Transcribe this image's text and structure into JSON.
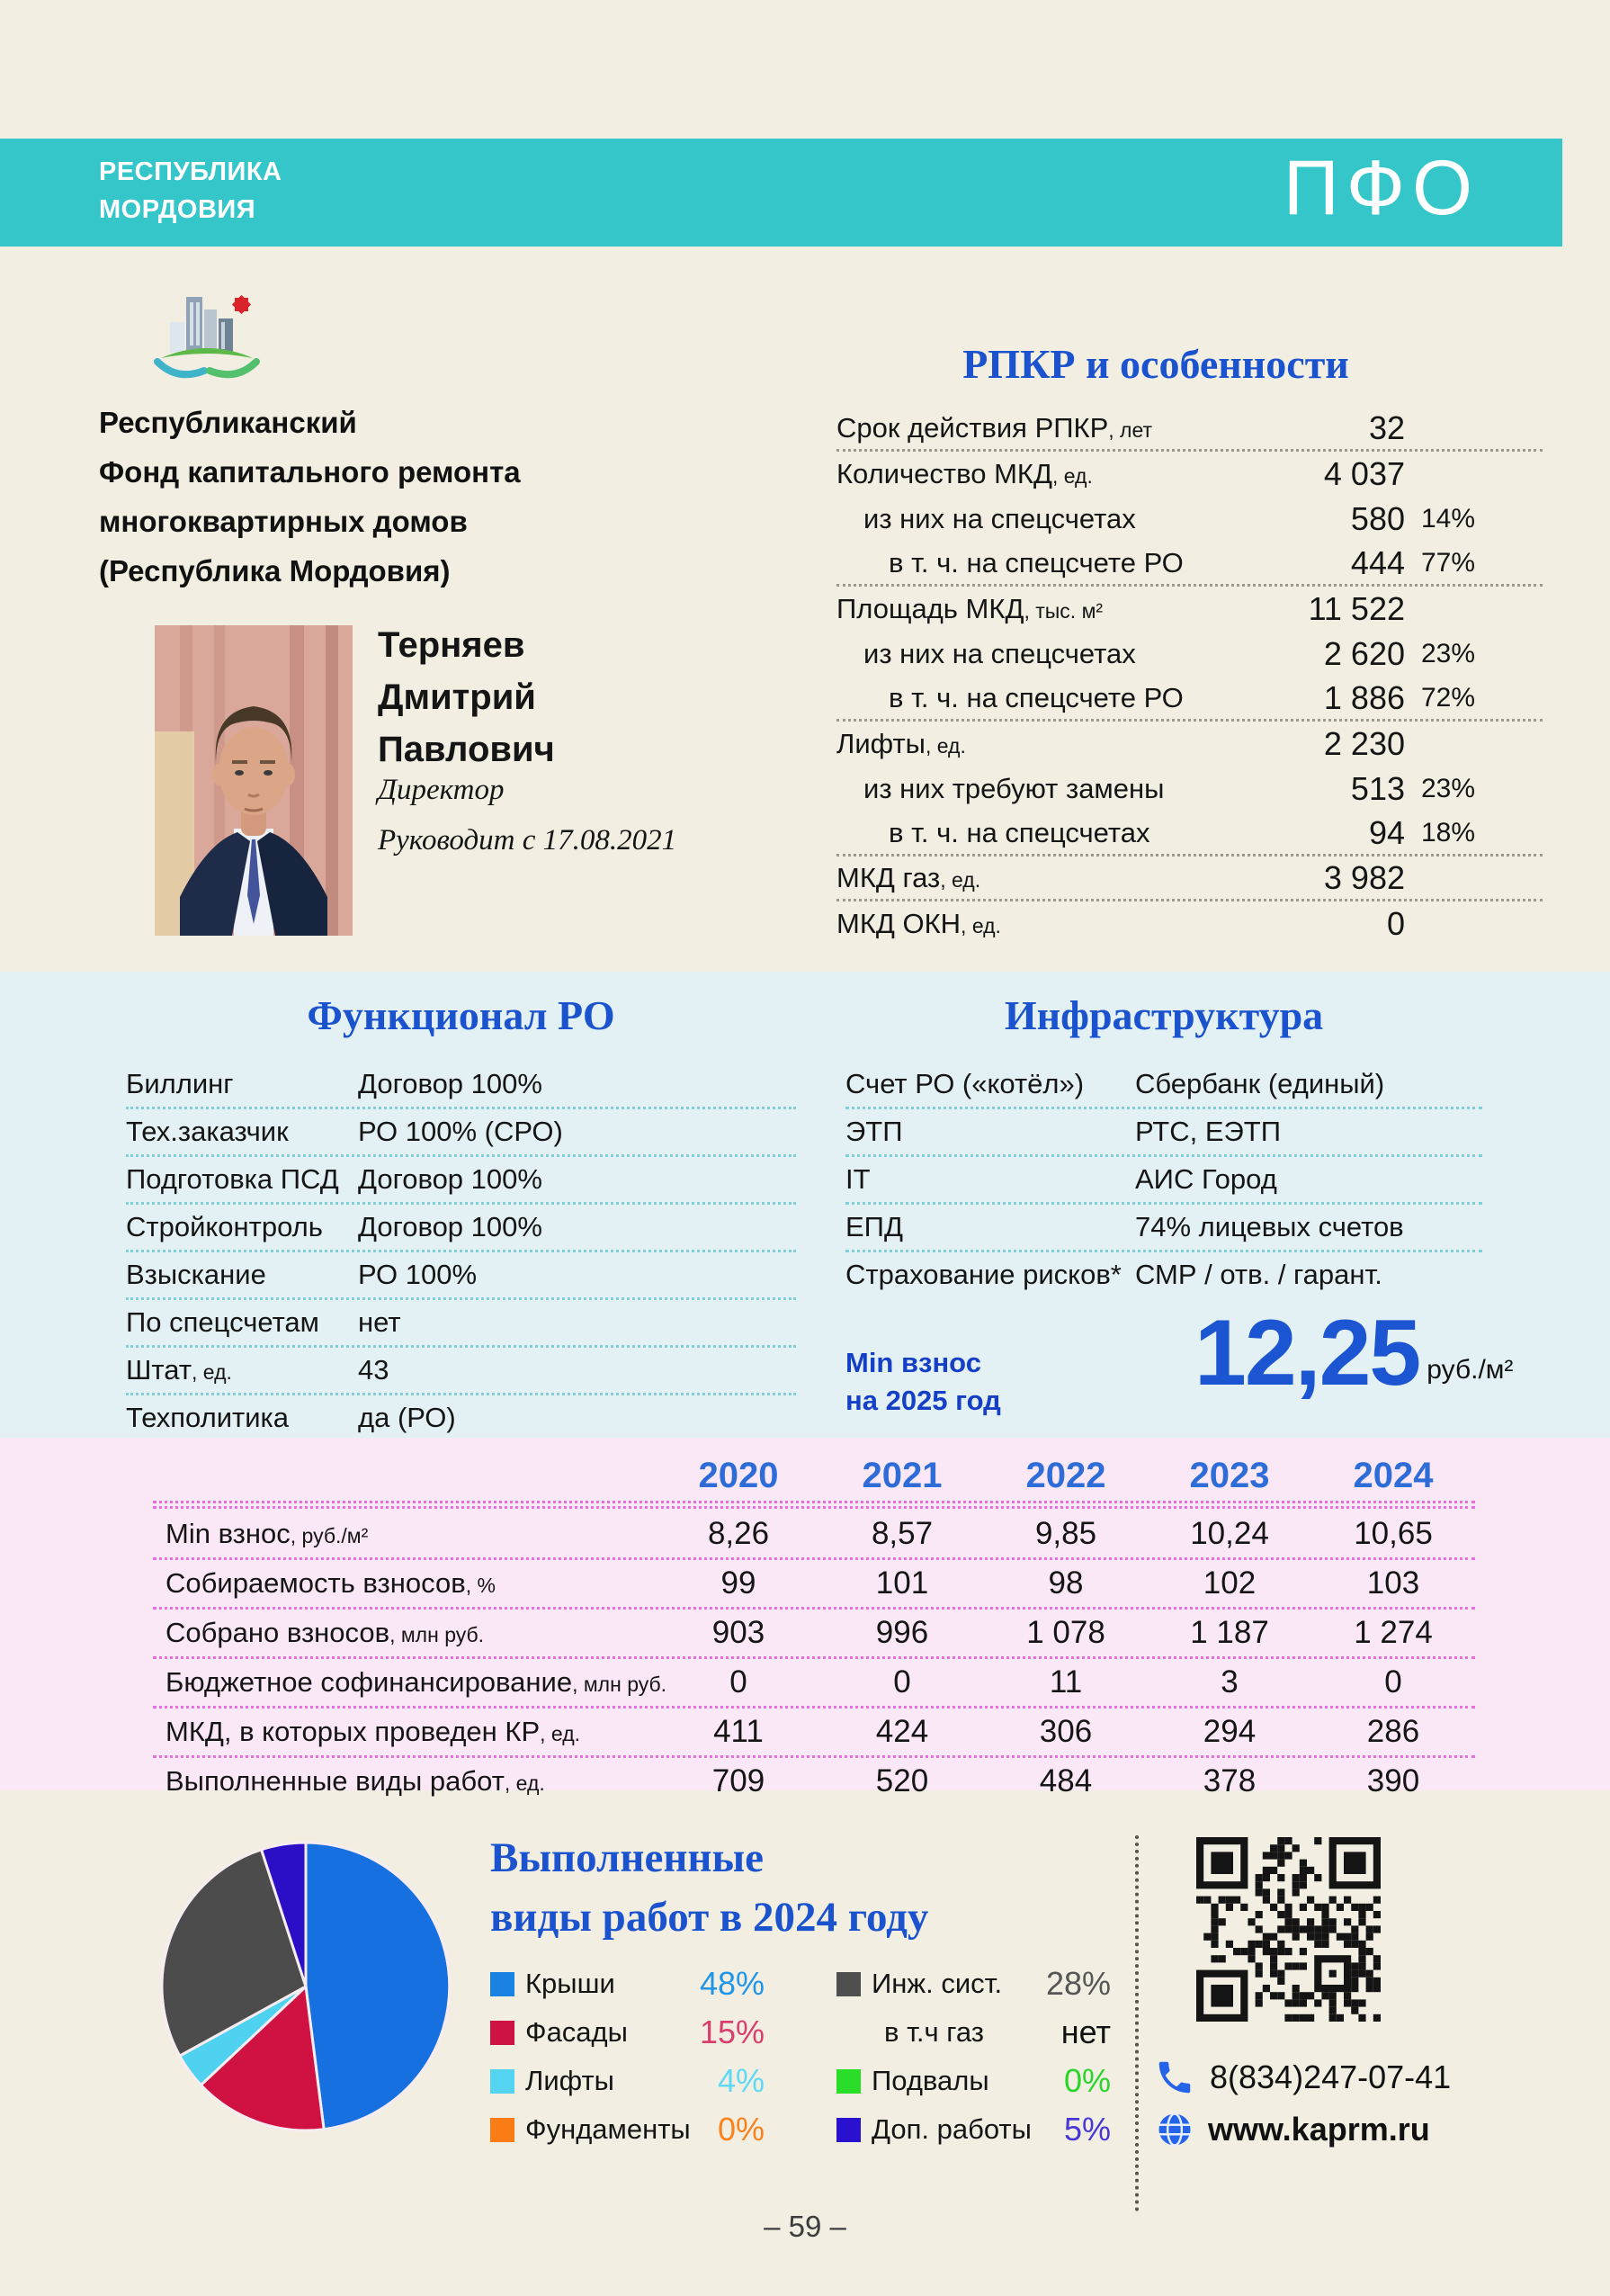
{
  "header": {
    "region_line1": "РЕСПУБЛИКА",
    "region_line2": "МОРДОВИЯ",
    "district": "ПФО"
  },
  "org": {
    "name_lines": [
      "Республиканский",
      "Фонд капитального ремонта",
      "многоквартирных домов",
      "(Республика Мордовия)"
    ]
  },
  "director": {
    "name_lines": [
      "Терняев",
      "Дмитрий",
      "Павлович"
    ],
    "position": "Директор",
    "tenure": "Руководит с 17.08.2021"
  },
  "rpkr": {
    "title": "РПКР и особенности",
    "rows": [
      {
        "label": "Срок действия РПКР",
        "unit": ", лет",
        "value": "32",
        "pct": "",
        "indent": 0,
        "sep": true
      },
      {
        "label": "Количество МКД",
        "unit": ", ед.",
        "value": "4 037",
        "pct": "",
        "indent": 0,
        "sep": false
      },
      {
        "label": "из них на спецсчетах",
        "unit": "",
        "value": "580",
        "pct": "14%",
        "indent": 1,
        "sep": false
      },
      {
        "label": "в т. ч. на спецсчете РО",
        "unit": "",
        "value": "444",
        "pct": "77%",
        "indent": 2,
        "sep": true
      },
      {
        "label": "Площадь МКД",
        "unit": ", тыс. м²",
        "value": "11 522",
        "pct": "",
        "indent": 0,
        "sep": false
      },
      {
        "label": "из них на спецсчетах",
        "unit": "",
        "value": "2 620",
        "pct": "23%",
        "indent": 1,
        "sep": false
      },
      {
        "label": "в т. ч. на спецсчете РО",
        "unit": "",
        "value": "1 886",
        "pct": "72%",
        "indent": 2,
        "sep": true
      },
      {
        "label": "Лифты",
        "unit": ", ед.",
        "value": "2 230",
        "pct": "",
        "indent": 0,
        "sep": false
      },
      {
        "label": "из них требуют замены",
        "unit": "",
        "value": "513",
        "pct": "23%",
        "indent": 1,
        "sep": false
      },
      {
        "label": "в т. ч. на спецсчетах",
        "unit": "",
        "value": "94",
        "pct": "18%",
        "indent": 2,
        "sep": true
      },
      {
        "label": "МКД газ",
        "unit": ", ед.",
        "value": "3 982",
        "pct": "",
        "indent": 0,
        "sep": true
      },
      {
        "label": "МКД ОКН",
        "unit": ", ед.",
        "value": "0",
        "pct": "",
        "indent": 0,
        "sep": false
      }
    ]
  },
  "functional": {
    "title": "Функционал РО",
    "rows": [
      {
        "label": "Биллинг",
        "unit": "",
        "value": "Договор 100%"
      },
      {
        "label": "Тех.заказчик",
        "unit": "",
        "value": "РО 100% (СРО)"
      },
      {
        "label": "Подготовка ПСД",
        "unit": "",
        "value": "Договор 100%"
      },
      {
        "label": "Стройконтроль",
        "unit": "",
        "value": "Договор 100%"
      },
      {
        "label": "Взыскание",
        "unit": "",
        "value": "РО 100%"
      },
      {
        "label": "По спецсчетам",
        "unit": "",
        "value": "нет"
      },
      {
        "label": "Штат",
        "unit": ", ед.",
        "value": "43"
      },
      {
        "label": "Техполитика",
        "unit": "",
        "value": "да (РО)"
      }
    ]
  },
  "infrastructure": {
    "title": "Инфраструктура",
    "rows": [
      {
        "label": "Счет РО («котёл»)",
        "unit": "",
        "value": "Сбербанк (единый)"
      },
      {
        "label": "ЭТП",
        "unit": "",
        "value": "РТС, ЕЭТП"
      },
      {
        "label": "IT",
        "unit": "",
        "value": "АИС Город"
      },
      {
        "label": "ЕПД",
        "unit": "",
        "value": "74% лицевых счетов"
      },
      {
        "label": "Страхование рисков*",
        "unit": "",
        "value": "СМР / отв. / гарант."
      }
    ]
  },
  "min_fee": {
    "label_lines": [
      "Min взнос",
      "на 2025 год"
    ],
    "value": "12,25",
    "unit": "руб./м²"
  },
  "years_table": {
    "years": [
      "2020",
      "2021",
      "2022",
      "2023",
      "2024"
    ],
    "rows": [
      {
        "label": "Min взнос",
        "unit": ", руб./м²",
        "values": [
          "8,26",
          "8,57",
          "9,85",
          "10,24",
          "10,65"
        ]
      },
      {
        "label": "Собираемость взносов",
        "unit": ", %",
        "values": [
          "99",
          "101",
          "98",
          "102",
          "103"
        ]
      },
      {
        "label": "Собрано взносов",
        "unit": ", млн руб.",
        "values": [
          "903",
          "996",
          "1 078",
          "1 187",
          "1 274"
        ]
      },
      {
        "label": "Бюджетное софинансирование",
        "unit": ", млн руб.",
        "values": [
          "0",
          "0",
          "11",
          "3",
          "0"
        ]
      },
      {
        "label": "МКД, в которых проведен КР",
        "unit": ", ед.",
        "values": [
          "411",
          "424",
          "306",
          "294",
          "286"
        ]
      },
      {
        "label": "Выполненные виды работ",
        "unit": ", ед.",
        "values": [
          "709",
          "520",
          "484",
          "378",
          "390"
        ]
      }
    ]
  },
  "chart_data": {
    "type": "pie",
    "title": "Выполненные виды работ в 2024 году",
    "title_lines": [
      "Выполненные",
      "виды работ в 2024 году"
    ],
    "segments": [
      {
        "label": "Крыши",
        "value": 48,
        "color": "#1670e0"
      },
      {
        "label": "Фасады",
        "value": 15,
        "color": "#d01243"
      },
      {
        "label": "Лифты",
        "value": 4,
        "color": "#4ed2f0"
      },
      {
        "label": "Инж. сист.",
        "value": 28,
        "color": "#4c4c4c"
      },
      {
        "label": "Доп. работы",
        "value": 5,
        "color": "#2b0fc6"
      },
      {
        "label": "Фундаменты",
        "value": 0,
        "color": "#f97c16"
      },
      {
        "label": "Подвалы",
        "value": 0,
        "color": "#29dd29"
      }
    ],
    "legend_columns": [
      [
        {
          "label": "Крыши",
          "value": "48%",
          "swatch": true,
          "color": "#1a82e2",
          "value_color": "#2196e8",
          "indent": false
        },
        {
          "label": "Фасады",
          "value": "15%",
          "swatch": true,
          "color": "#ce1243",
          "value_color": "#d93f6d",
          "indent": false
        },
        {
          "label": "Лифты",
          "value": "4%",
          "swatch": true,
          "color": "#55d4f2",
          "value_color": "#5fd8f5",
          "indent": false
        },
        {
          "label": "Фундаменты",
          "value": "0%",
          "swatch": true,
          "color": "#f97c16",
          "value_color": "#f9821c",
          "indent": false
        }
      ],
      [
        {
          "label": "Инж. сист.",
          "value": "28%",
          "swatch": true,
          "color": "#4f4f4f",
          "value_color": "#565656",
          "indent": false
        },
        {
          "label": "в т.ч газ",
          "value": "нет",
          "swatch": false,
          "color": "",
          "value_color": "#111111",
          "indent": true
        },
        {
          "label": "Подвалы",
          "value": "0%",
          "swatch": true,
          "color": "#29dd29",
          "value_color": "#2bd42b",
          "indent": false
        },
        {
          "label": "Доп. работы",
          "value": "5%",
          "swatch": true,
          "color": "#2a10cf",
          "value_color": "#4837d6",
          "indent": false
        }
      ]
    ]
  },
  "contacts": {
    "phone": "8(834)247-07-41",
    "website": "www.kaprm.ru"
  },
  "footer": {
    "page_number": "– 59 –"
  }
}
